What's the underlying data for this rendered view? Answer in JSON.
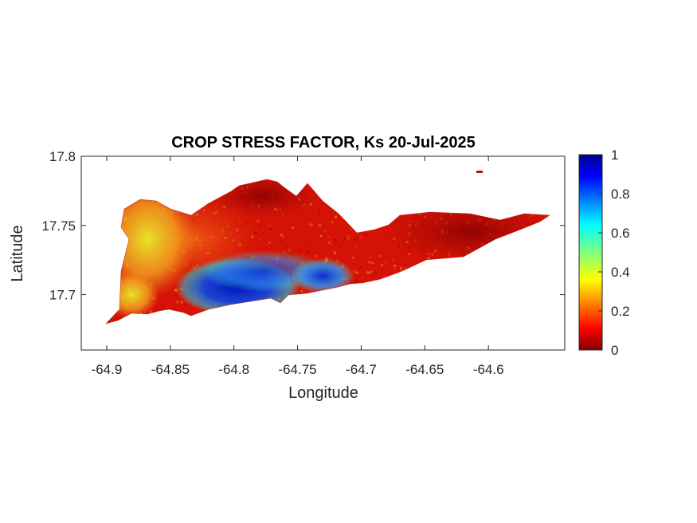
{
  "chart_data": {
    "type": "heatmap",
    "title": "CROP STRESS FACTOR, Ks  20-Jul-2025",
    "xlabel": "Longitude",
    "ylabel": "Latitude",
    "xlim": [
      -64.92,
      -64.54
    ],
    "ylim": [
      17.66,
      17.8
    ],
    "x_ticks": [
      -64.9,
      -64.85,
      -64.8,
      -64.75,
      -64.7,
      -64.65,
      -64.6
    ],
    "x_tick_labels": [
      "-64.9",
      "-64.85",
      "-64.8",
      "-64.75",
      "-64.7",
      "-64.65",
      "-64.6"
    ],
    "y_ticks": [
      17.7,
      17.75,
      17.8
    ],
    "y_tick_labels": [
      "17.7",
      "17.75",
      "17.8"
    ],
    "colormap": "jet",
    "colorbar": {
      "range": [
        0,
        1
      ],
      "ticks": [
        0,
        0.2,
        0.4,
        0.6,
        0.8,
        1
      ],
      "tick_labels": [
        "0",
        "0.2",
        "0.4",
        "0.6",
        "0.8",
        "1"
      ]
    },
    "regions": [
      {
        "region": "west end (around -64.88, 17.74)",
        "ks_approx": 0.35
      },
      {
        "region": "central interior (around -64.8, 17.76)",
        "ks_approx": 0.1
      },
      {
        "region": "south-central coast (around -64.82, 17.70)",
        "ks_approx": 0.9
      },
      {
        "region": "south coast near -64.75, 17.71",
        "ks_approx": 0.75
      },
      {
        "region": "east end (around -64.65, 17.74)",
        "ks_approx": 0.03
      }
    ],
    "grid": false,
    "colorbar_placement": "right"
  }
}
